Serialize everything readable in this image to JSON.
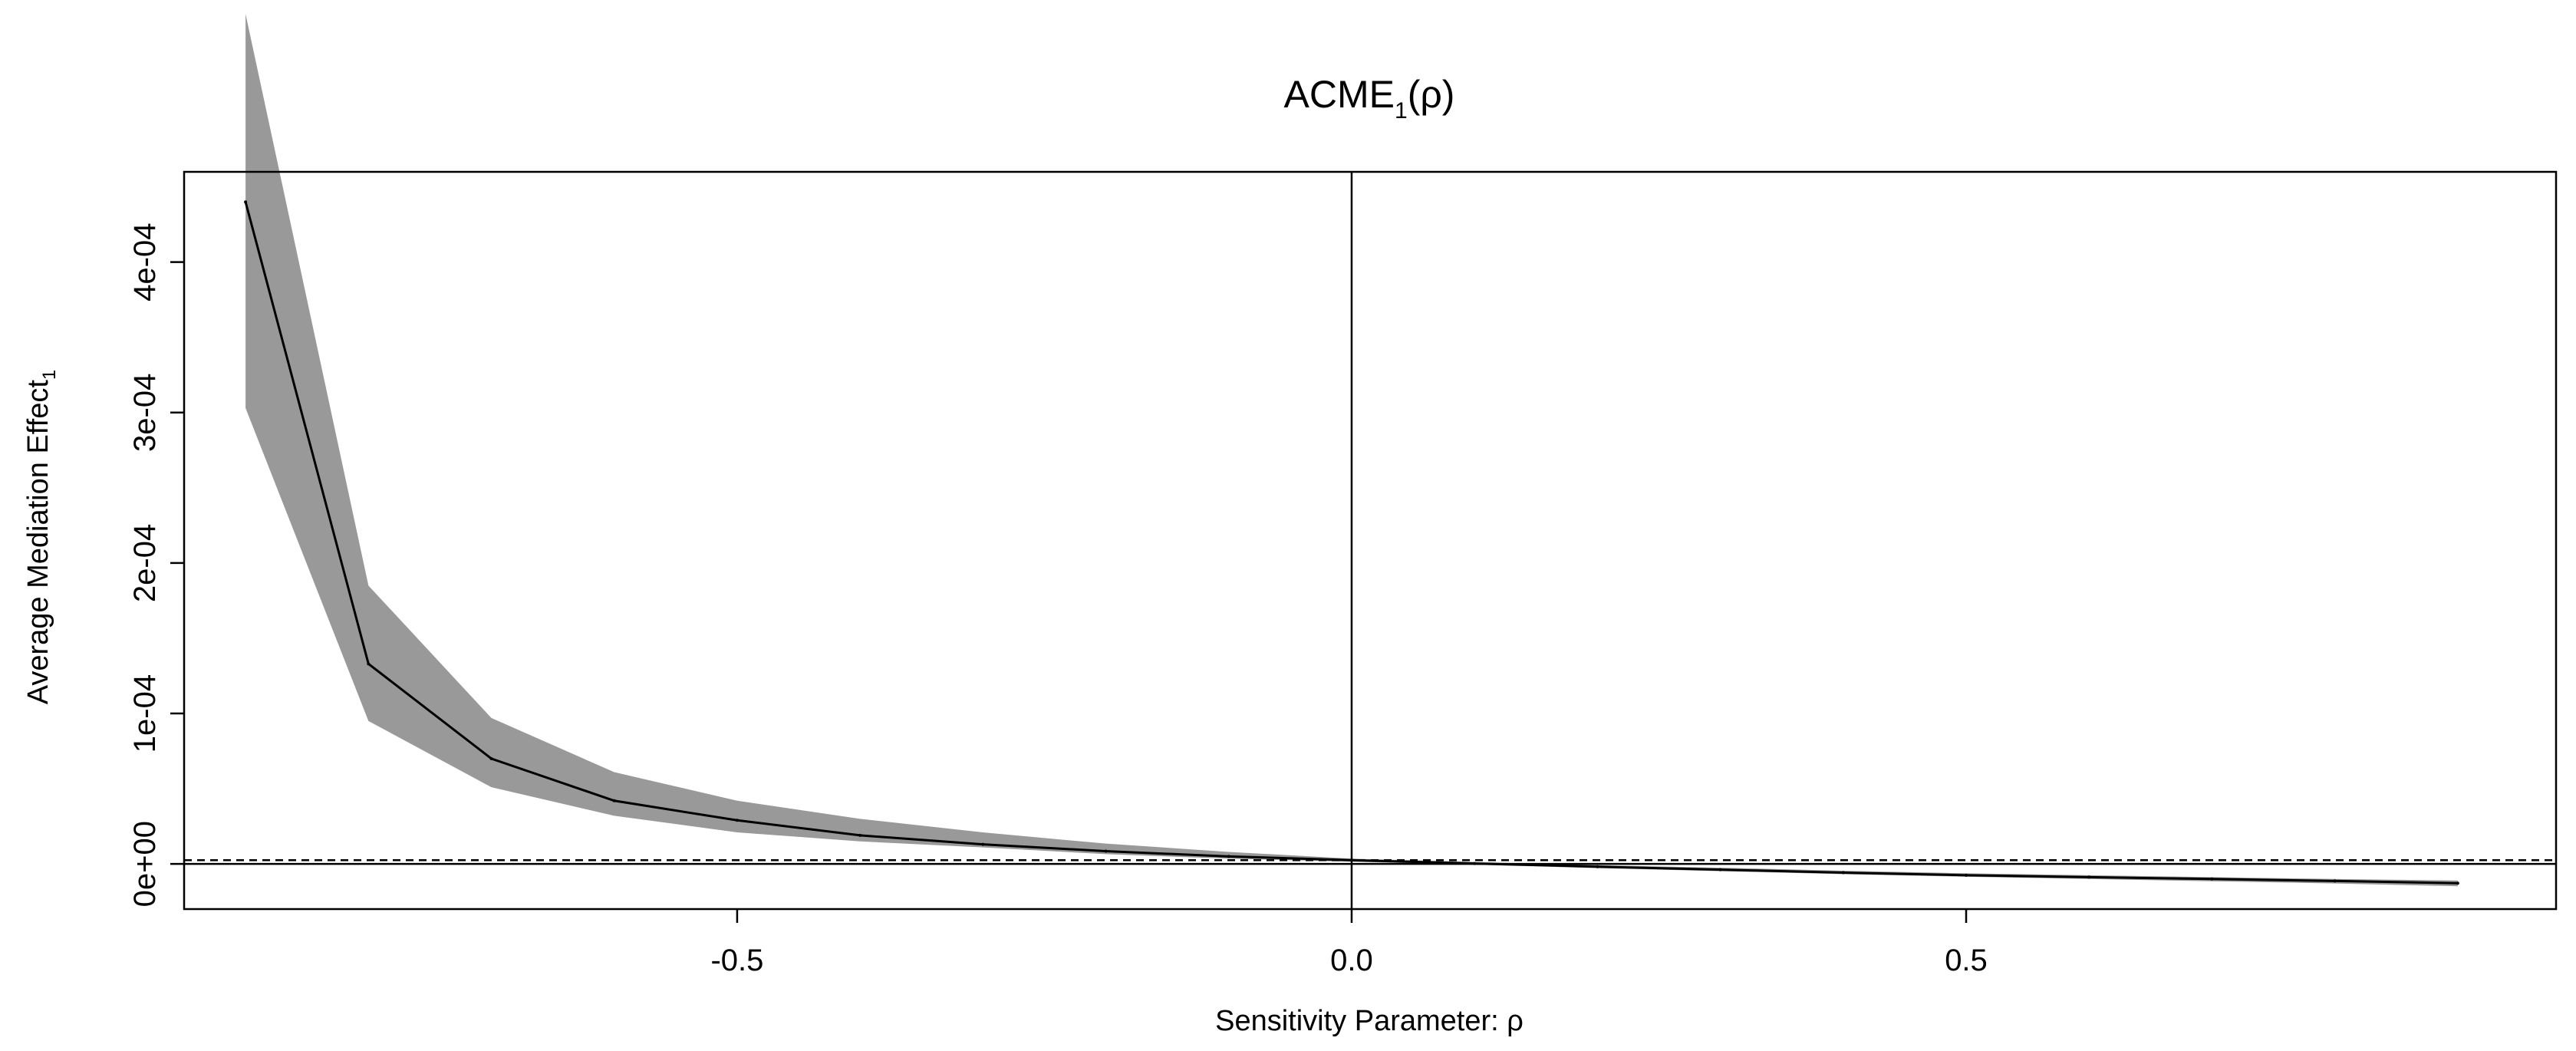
{
  "chart_data": {
    "type": "line",
    "title": "ACME",
    "title_subscript": "1",
    "title_suffix": "(ρ)",
    "xlabel": "Sensitivity Parameter: ρ",
    "ylabel": "Average Mediation Effect",
    "ylabel_subscript": "1",
    "xlim": [
      -0.95,
      0.98
    ],
    "ylim": [
      -3e-05,
      0.00046
    ],
    "x_ticks": [
      {
        "value": -0.5,
        "label": "-0.5"
      },
      {
        "value": 0.0,
        "label": "0.0"
      },
      {
        "value": 0.5,
        "label": "0.5"
      }
    ],
    "y_ticks": [
      {
        "value": 0.0,
        "label": "0e+00"
      },
      {
        "value": 0.0001,
        "label": "1e-04"
      },
      {
        "value": 0.0002,
        "label": "2e-04"
      },
      {
        "value": 0.0003,
        "label": "3e-04"
      },
      {
        "value": 0.0004,
        "label": "4e-04"
      }
    ],
    "reference_lines": {
      "vertical_x": 0.0,
      "horizontal_solid_y": 0.0,
      "horizontal_dashed_y": 2.5e-06
    },
    "colors": {
      "band": "#999999",
      "line": "#000000",
      "frame": "#000000"
    },
    "series": [
      {
        "x": [
          -0.9,
          -0.8,
          -0.7,
          -0.6,
          -0.5,
          -0.4,
          -0.3,
          -0.2,
          -0.1,
          0.0,
          0.1,
          0.2,
          0.3,
          0.4,
          0.5,
          0.6,
          0.7,
          0.8,
          0.9
        ],
        "y": [
          0.00044,
          0.000133,
          7e-05,
          4.2e-05,
          2.9e-05,
          1.9e-05,
          1.3e-05,
          8.5e-06,
          5e-06,
          2.5e-06,
          3e-07,
          -1.8e-06,
          -3.8e-06,
          -5.8e-06,
          -7.5e-06,
          -8.8e-06,
          -1e-05,
          -1.13e-05,
          -1.28e-05
        ],
        "lower": [
          0.000303,
          9.5e-05,
          5.1e-05,
          3.2e-05,
          2.1e-05,
          1.5e-05,
          1.1e-05,
          6.5e-06,
          3.5e-06,
          1.5e-06,
          -5e-07,
          -2.8e-06,
          -4.8e-06,
          -6.8e-06,
          -8.5e-06,
          -1e-05,
          -1.15e-05,
          -1.3e-05,
          -1.48e-05
        ],
        "upper": [
          0.000565,
          0.000185,
          9.7e-05,
          6.1e-05,
          4.2e-05,
          3e-05,
          2.1e-05,
          1.35e-05,
          8e-06,
          3.5e-06,
          1.3e-06,
          -8e-07,
          -2.5e-06,
          -4.5e-06,
          -6.2e-06,
          -7.5e-06,
          -8.8e-06,
          -1e-05,
          -1.1e-05
        ]
      }
    ]
  }
}
